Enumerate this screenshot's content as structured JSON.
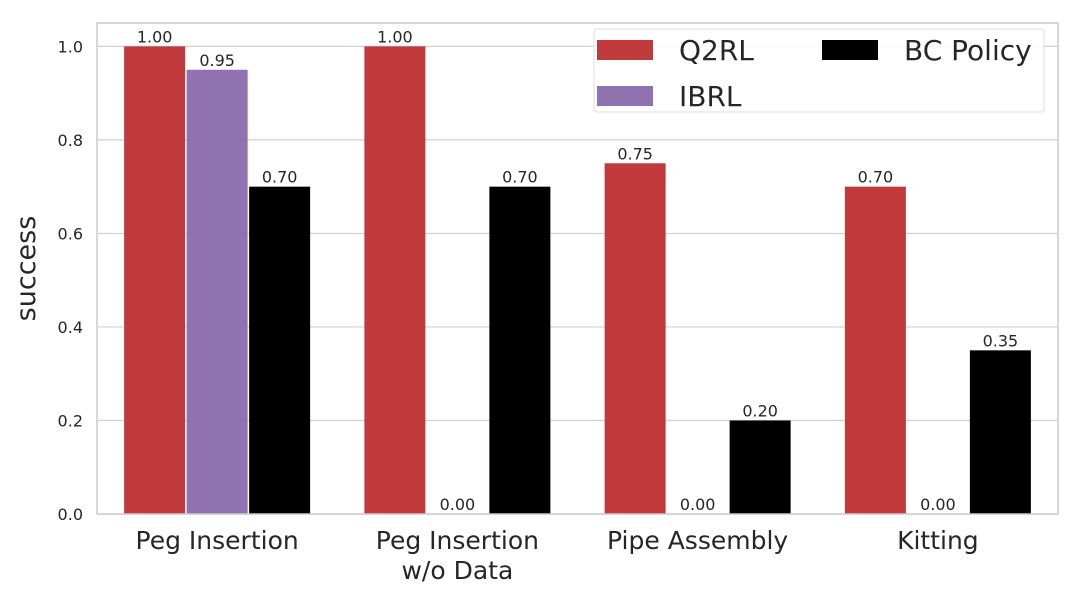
{
  "chart_data": {
    "type": "bar",
    "categories": [
      "Peg Insertion",
      "Peg Insertion\nw/o Data",
      "Pipe Assembly",
      "Kitting"
    ],
    "series": [
      {
        "name": "Q2RL",
        "color": "#c0393b",
        "values": [
          1.0,
          1.0,
          0.75,
          0.7
        ]
      },
      {
        "name": "IBRL",
        "color": "#9172b1",
        "values": [
          0.95,
          0.0,
          0.0,
          0.0
        ]
      },
      {
        "name": "BC Policy",
        "color": "#000000",
        "values": [
          0.7,
          0.7,
          0.2,
          0.35
        ]
      }
    ],
    "data_labels": [
      [
        "1.00",
        "0.95",
        "0.70"
      ],
      [
        "1.00",
        "0.00",
        "0.70"
      ],
      [
        "0.75",
        "0.00",
        "0.20"
      ],
      [
        "0.70",
        "0.00",
        "0.35"
      ]
    ],
    "title": "",
    "xlabel": "",
    "ylabel": "success",
    "ylim": [
      0,
      1.05
    ],
    "yticks": [
      0.0,
      0.2,
      0.4,
      0.6,
      0.8,
      1.0
    ],
    "ytick_labels": [
      "0.0",
      "0.2",
      "0.4",
      "0.6",
      "0.8",
      "1.0"
    ],
    "grid": "horizontal",
    "legend_position": "top-right",
    "legend_columns": 2,
    "legend_order": [
      0,
      2,
      1
    ]
  }
}
